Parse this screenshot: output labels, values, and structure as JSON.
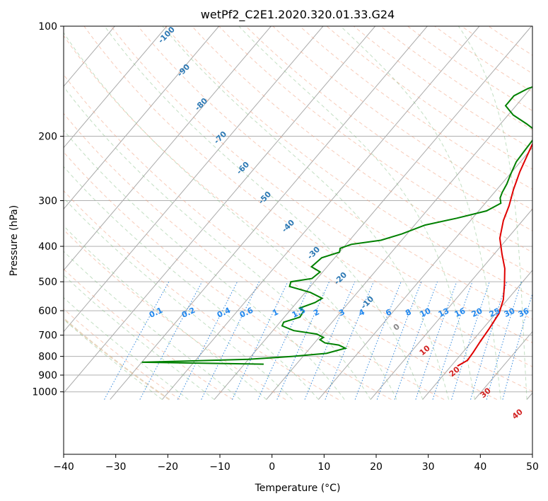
{
  "chart_data": {
    "type": "line",
    "title": "wetPf2_C2E1.2020.320.01.33.G24",
    "xlabel": "Temperature (°C)",
    "ylabel": "Pressure (hPa)",
    "xlim": [
      -40,
      50
    ],
    "ylim": [
      1050,
      100
    ],
    "y_scale": "log",
    "grid": true,
    "x_ticks": [
      -40,
      -30,
      -20,
      -10,
      0,
      10,
      20,
      30,
      40,
      50
    ],
    "x_tick_labels": [
      "−40",
      "−30",
      "−20",
      "−10",
      "0",
      "10",
      "20",
      "30",
      "40",
      "50"
    ],
    "y_ticks": [
      100,
      200,
      300,
      400,
      500,
      600,
      700,
      800,
      900,
      1000
    ],
    "y_tick_labels": [
      "100",
      "200",
      "300",
      "400",
      "500",
      "600",
      "700",
      "800",
      "900",
      "1000"
    ],
    "series": [
      {
        "color": "#e00000",
        "points": [
          [
            21.2,
            850
          ],
          [
            22.2,
            820
          ],
          [
            22.0,
            780
          ],
          [
            21.6,
            730
          ],
          [
            21.2,
            670
          ],
          [
            20.6,
            610
          ],
          [
            19.2,
            560
          ],
          [
            17.0,
            510
          ],
          [
            14.4,
            460
          ],
          [
            11.5,
            420
          ],
          [
            8.5,
            380
          ],
          [
            6.3,
            340
          ],
          [
            5.0,
            310
          ],
          [
            3.2,
            280
          ],
          [
            1.5,
            250
          ],
          [
            -0.6,
            210
          ],
          [
            0.0,
            190
          ],
          [
            3.2,
            170
          ],
          [
            5.5,
            155
          ],
          [
            6.2,
            140
          ],
          [
            7.4,
            130
          ],
          [
            8.5,
            120
          ],
          [
            10.0,
            110
          ],
          [
            11.0,
            100
          ]
        ]
      },
      {
        "color": "#008000",
        "points": [
          [
            -16.3,
            840
          ],
          [
            -40.0,
            830
          ],
          [
            -33.0,
            825
          ],
          [
            -20.0,
            815
          ],
          [
            -12.0,
            800
          ],
          [
            -6.0,
            785
          ],
          [
            -3.2,
            760
          ],
          [
            -5.0,
            745
          ],
          [
            -8.0,
            735
          ],
          [
            -9.5,
            720
          ],
          [
            -9.2,
            710
          ],
          [
            -11.0,
            695
          ],
          [
            -16.0,
            680
          ],
          [
            -19.0,
            660
          ],
          [
            -19.3,
            645
          ],
          [
            -17.0,
            625
          ],
          [
            -17.3,
            600
          ],
          [
            -18.5,
            590
          ],
          [
            -16.5,
            570
          ],
          [
            -15.8,
            555
          ],
          [
            -19.0,
            535
          ],
          [
            -24.0,
            515
          ],
          [
            -24.5,
            500
          ],
          [
            -21.0,
            490
          ],
          [
            -20.5,
            470
          ],
          [
            -23.0,
            455
          ],
          [
            -22.5,
            430
          ],
          [
            -20.0,
            415
          ],
          [
            -20.5,
            405
          ],
          [
            -19.0,
            395
          ],
          [
            -14.0,
            385
          ],
          [
            -11.0,
            370
          ],
          [
            -8.0,
            350
          ],
          [
            -3.0,
            335
          ],
          [
            1.5,
            320
          ],
          [
            3.0,
            305
          ],
          [
            2.0,
            295
          ],
          [
            1.5,
            285
          ],
          [
            1.0,
            270
          ],
          [
            0.2,
            255
          ],
          [
            -0.8,
            235
          ],
          [
            -1.0,
            220
          ],
          [
            -1.2,
            205
          ],
          [
            -1.5,
            195
          ],
          [
            -5.0,
            185
          ],
          [
            -9.0,
            175
          ],
          [
            -12.0,
            165
          ],
          [
            -12.0,
            155
          ],
          [
            -10.5,
            148
          ],
          [
            -7.0,
            140
          ],
          [
            -3.5,
            130
          ],
          [
            -1.0,
            120
          ],
          [
            1.5,
            110
          ],
          [
            2.8,
            104
          ],
          [
            3.5,
            100
          ]
        ]
      }
    ],
    "dry_adiabat_labels": [
      "-100",
      "-90",
      "-80",
      "-70",
      "-60",
      "-50",
      "-40",
      "-30",
      "-20",
      "-10"
    ],
    "mixing_ratio_labels": [
      "0.1",
      "0.2",
      "0.4",
      "0.6",
      "1",
      "1.5",
      "2",
      "3",
      "4",
      "6",
      "8",
      "10",
      "13",
      "16",
      "20",
      "25",
      "30",
      "36"
    ],
    "moist_adiabat_labels": [
      "0",
      "10",
      "20",
      "30",
      "40"
    ]
  }
}
